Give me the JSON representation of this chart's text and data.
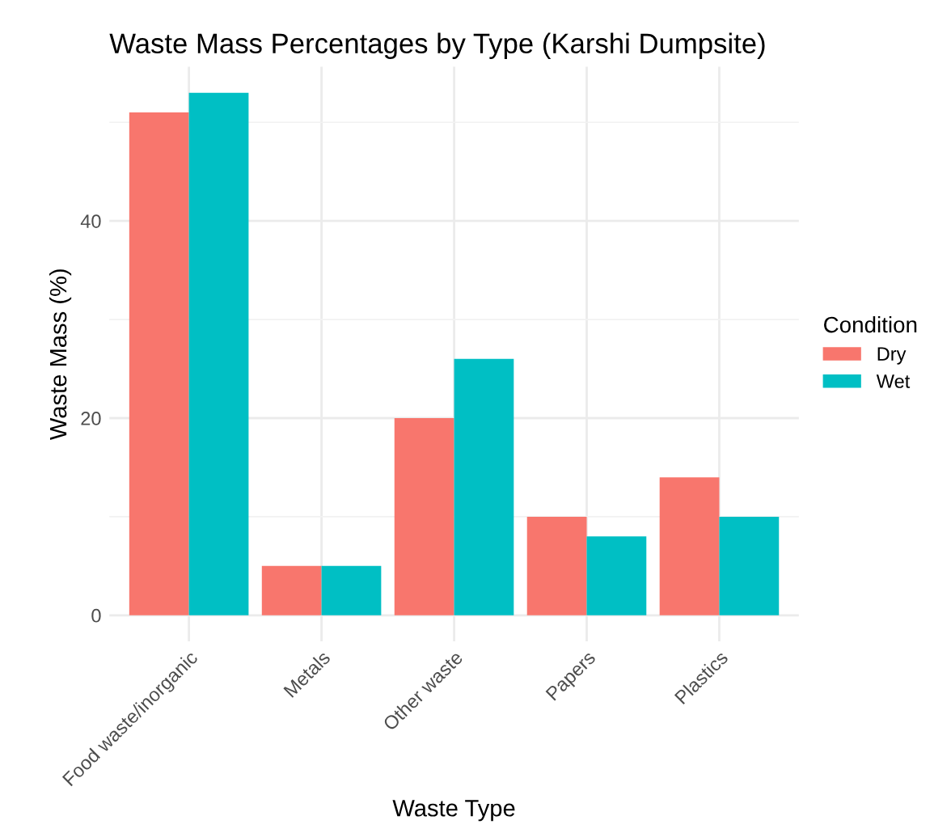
{
  "chart_data": {
    "type": "bar",
    "title": "Waste Mass Percentages by Type (Karshi Dumpsite)",
    "xlabel": "Waste Type",
    "ylabel": "Waste Mass (%)",
    "legend_title": "Condition",
    "categories": [
      "Food waste/inorganic",
      "Metals",
      "Other waste",
      "Papers",
      "Plastics"
    ],
    "series": [
      {
        "name": "Dry",
        "color": "#f8766d",
        "values": [
          51,
          5,
          20,
          10,
          14
        ]
      },
      {
        "name": "Wet",
        "color": "#00bfc4",
        "values": [
          53,
          5,
          26,
          8,
          10
        ]
      }
    ],
    "ylim": [
      -2.65,
      55.65
    ],
    "yticks": [
      0,
      20,
      40
    ],
    "grid": true,
    "legend": "right"
  }
}
